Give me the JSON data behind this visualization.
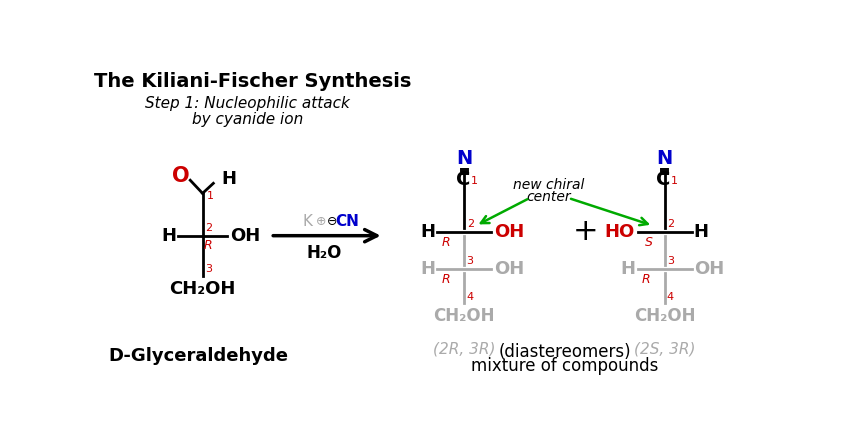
{
  "title": "The Kiliani-Fischer Synthesis",
  "subtitle_line1": "Step 1: Nucleophilic attack",
  "subtitle_line2": "by cyanide ion",
  "bg_color": "#ffffff",
  "black": "#000000",
  "red": "#cc0000",
  "blue": "#0000cc",
  "gray": "#aaaaaa",
  "green": "#00aa00",
  "d_glyceraldehyde_label": "D-Glyceraldehyde",
  "mixture_label1": "mixture of compounds",
  "mixture_label2": "(diastereomers)",
  "stereo_label_left": "(2R, 3R)",
  "stereo_label_right": "(2S, 3R)"
}
